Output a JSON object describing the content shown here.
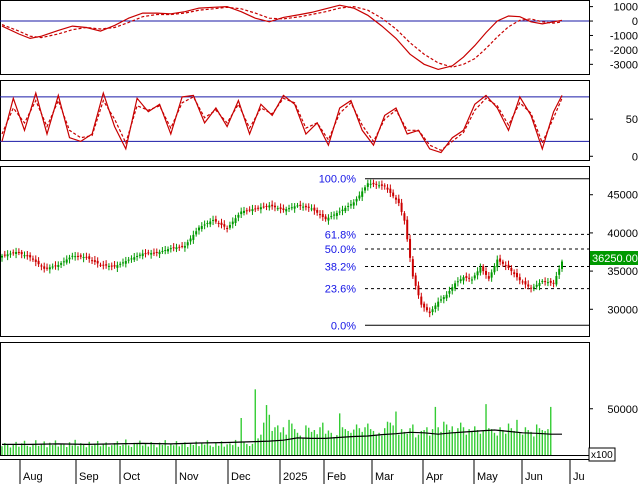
{
  "chart_data": [
    {
      "type": "line",
      "panel": "macd",
      "y_ticks": [
        "1000",
        "0",
        "-1000",
        "-2000",
        "-3000"
      ],
      "y_tick_values": [
        1000,
        0,
        -1000,
        -2000,
        -3000
      ],
      "ylim": [
        -3600,
        1250
      ],
      "reference_lines": [
        0
      ],
      "series": [
        {
          "color": "#c80000",
          "style": "solid",
          "x": [
            0,
            6,
            10,
            14,
            20,
            25,
            30,
            35,
            40,
            45,
            50,
            55,
            60,
            65,
            70,
            75,
            80,
            85,
            90,
            95,
            100,
            106,
            110,
            115,
            120,
            125,
            130,
            135,
            140,
            145,
            150,
            155,
            160,
            164,
            168,
            172,
            176,
            180,
            184,
            188,
            192,
            196,
            199
          ],
          "values": [
            -350,
            -900,
            -1200,
            -1050,
            -650,
            -350,
            -450,
            -700,
            -300,
            200,
            550,
            550,
            500,
            650,
            900,
            950,
            1000,
            650,
            200,
            -50,
            250,
            450,
            600,
            850,
            1100,
            900,
            400,
            -350,
            -1200,
            -2300,
            -3000,
            -3350,
            -3100,
            -2500,
            -1700,
            -800,
            0,
            350,
            300,
            -50,
            -200,
            -50,
            50
          ]
        },
        {
          "color": "#c80000",
          "style": "dashed",
          "x": [
            0,
            6,
            10,
            14,
            20,
            25,
            30,
            35,
            40,
            45,
            50,
            55,
            60,
            65,
            70,
            75,
            80,
            85,
            90,
            95,
            100,
            106,
            110,
            115,
            120,
            125,
            130,
            135,
            140,
            145,
            150,
            155,
            160,
            164,
            168,
            172,
            176,
            180,
            184,
            188,
            192,
            196,
            199
          ],
          "values": [
            -250,
            -700,
            -1050,
            -1150,
            -900,
            -600,
            -450,
            -550,
            -450,
            -100,
            300,
            450,
            450,
            550,
            750,
            850,
            950,
            850,
            550,
            200,
            150,
            300,
            450,
            650,
            900,
            1000,
            750,
            200,
            -550,
            -1500,
            -2300,
            -2900,
            -3200,
            -3000,
            -2600,
            -1900,
            -1100,
            -400,
            50,
            150,
            -50,
            -150,
            -50
          ]
        }
      ]
    },
    {
      "type": "line",
      "panel": "stochastic",
      "y_ticks": [
        "50",
        "0"
      ],
      "y_tick_values": [
        50,
        0
      ],
      "ylim": [
        -5,
        100
      ],
      "reference_lines": [
        80,
        20
      ],
      "series": [
        {
          "color": "#c80000",
          "style": "solid",
          "x": [
            0,
            4,
            8,
            12,
            16,
            20,
            24,
            28,
            32,
            36,
            40,
            44,
            48,
            52,
            56,
            60,
            64,
            68,
            72,
            76,
            80,
            84,
            88,
            92,
            96,
            100,
            104,
            108,
            112,
            116,
            120,
            124,
            128,
            132,
            136,
            140,
            144,
            148,
            152,
            156,
            160,
            164,
            168,
            172,
            176,
            180,
            184,
            188,
            192,
            196,
            199
          ],
          "values": [
            20,
            78,
            35,
            85,
            30,
            82,
            25,
            20,
            30,
            85,
            40,
            10,
            78,
            60,
            70,
            30,
            80,
            82,
            45,
            65,
            40,
            75,
            30,
            70,
            55,
            82,
            70,
            30,
            45,
            15,
            65,
            75,
            35,
            15,
            55,
            65,
            30,
            35,
            10,
            5,
            25,
            35,
            70,
            82,
            65,
            35,
            80,
            55,
            10,
            60,
            82
          ]
        },
        {
          "color": "#c80000",
          "style": "dashed",
          "x": [
            0,
            4,
            8,
            12,
            16,
            20,
            24,
            28,
            32,
            36,
            40,
            44,
            48,
            52,
            56,
            60,
            64,
            68,
            72,
            76,
            80,
            84,
            88,
            92,
            96,
            100,
            104,
            108,
            112,
            116,
            120,
            124,
            128,
            132,
            136,
            140,
            144,
            148,
            152,
            156,
            160,
            164,
            168,
            172,
            176,
            180,
            184,
            188,
            192,
            196,
            199
          ],
          "values": [
            30,
            65,
            45,
            75,
            40,
            75,
            35,
            25,
            28,
            75,
            50,
            18,
            68,
            62,
            68,
            38,
            72,
            80,
            52,
            62,
            45,
            70,
            38,
            65,
            57,
            78,
            72,
            38,
            45,
            22,
            58,
            72,
            42,
            20,
            50,
            62,
            35,
            35,
            15,
            8,
            20,
            32,
            62,
            78,
            68,
            42,
            72,
            58,
            18,
            52,
            78
          ]
        }
      ]
    },
    {
      "type": "candlestick",
      "panel": "price",
      "y_ticks": [
        "45000",
        "40000",
        "35000",
        "30000"
      ],
      "y_tick_values": [
        45000,
        40000,
        35000,
        30000
      ],
      "ylim": [
        26500,
        48500
      ],
      "last_price_label": "36250.00",
      "last_price": 36250,
      "close_x": [
        0,
        5,
        10,
        15,
        20,
        25,
        30,
        35,
        40,
        45,
        50,
        55,
        60,
        65,
        70,
        75,
        80,
        85,
        90,
        95,
        100,
        105,
        110,
        115,
        120,
        125,
        127,
        130,
        133,
        136,
        139,
        141,
        143,
        146,
        149,
        152,
        155,
        158,
        161,
        164,
        167,
        170,
        173,
        176,
        180,
        184,
        188,
        192,
        196,
        199
      ],
      "close": [
        37000,
        37500,
        36800,
        35300,
        35800,
        37000,
        36800,
        35800,
        35600,
        36500,
        37300,
        37400,
        38000,
        38300,
        40700,
        41700,
        40600,
        42800,
        43200,
        43600,
        43000,
        43600,
        43200,
        41800,
        42800,
        44000,
        44900,
        46500,
        46300,
        46100,
        44800,
        43900,
        41600,
        34300,
        30600,
        29500,
        31000,
        31900,
        33400,
        34200,
        33900,
        35500,
        34000,
        36500,
        35400,
        33800,
        32700,
        33700,
        33400,
        36250
      ],
      "fibonacci": {
        "levels": [
          {
            "label": "100.0%",
            "price": 47100
          },
          {
            "label": "61.8%",
            "price": 39800
          },
          {
            "label": "50.0%",
            "price": 37900
          },
          {
            "label": "38.2%",
            "price": 35600
          },
          {
            "label": "23.6%",
            "price": 32700
          },
          {
            "label": "0.0%",
            "price": 27900
          }
        ]
      }
    },
    {
      "type": "bar",
      "panel": "volume",
      "y_ticks": [
        "50000"
      ],
      "y_tick_values": [
        50000
      ],
      "ylim": [
        0,
        120000
      ],
      "unit_label": "x100",
      "values": [
        9500,
        13000,
        10800,
        8200,
        11800,
        14200,
        9000,
        12600,
        15400,
        10000,
        8800,
        12000,
        16000,
        9900,
        11400,
        14700,
        8400,
        13300,
        10700,
        15800,
        9200,
        12200,
        11300,
        8600,
        13800,
        10300,
        16400,
        9600,
        12800,
        11000,
        8400,
        14300,
        10100,
        12400,
        15200,
        9400,
        11700,
        13600,
        8900,
        10600,
        12900,
        14900,
        9700,
        11100,
        16800,
        10400,
        8700,
        13100,
        11900,
        15600,
        10200,
        12500,
        9100,
        14000,
        11300,
        8300,
        13400,
        10900,
        16100,
        9800,
        12100,
        10500,
        15000,
        9300,
        11600,
        13700,
        8600,
        12300,
        10800,
        14500,
        9600,
        12700,
        11200,
        15900,
        10300,
        8800,
        13200,
        10000,
        14800,
        9000,
        11500,
        12600,
        10700,
        16300,
        8900,
        40000,
        13900,
        11800,
        9700,
        12000,
        71000,
        18000,
        22000,
        35000,
        54000,
        43500,
        26000,
        30000,
        32000,
        24500,
        30000,
        22000,
        38000,
        34000,
        28000,
        24000,
        21000,
        18500,
        32000,
        29500,
        25000,
        27000,
        22500,
        30000,
        35000,
        23000,
        26500,
        24000,
        19500,
        21500,
        45000,
        30000,
        28000,
        26000,
        24000,
        27500,
        33000,
        29000,
        25000,
        30000,
        34000,
        28000,
        26000,
        22000,
        24000,
        21000,
        29000,
        36000,
        35000,
        32000,
        47000,
        22000,
        28000,
        25000,
        23000,
        29000,
        33000,
        19000,
        22000,
        26000,
        27000,
        30000,
        21000,
        28000,
        52000,
        30000,
        25000,
        36000,
        33000,
        27000,
        31000,
        24000,
        29000,
        35000,
        30000,
        22000,
        28000,
        25000,
        31000,
        27000,
        23000,
        26000,
        55000,
        29000,
        28000,
        24000,
        21000,
        30000,
        27000,
        23000,
        34000,
        29000,
        26000,
        38000,
        24000,
        22000,
        30000,
        27000,
        25000,
        20000,
        33000,
        29000,
        27000,
        26000,
        28000,
        52000
      ],
      "moving_average": {
        "x": [
          0,
          10,
          20,
          30,
          40,
          50,
          60,
          70,
          80,
          90,
          95,
          100,
          105,
          110,
          115,
          120,
          125,
          130,
          135,
          140,
          145,
          150,
          155,
          160,
          165,
          170,
          175,
          180,
          185,
          190,
          195,
          199
        ],
        "values": [
          11500,
          11500,
          12000,
          11500,
          12000,
          12500,
          12000,
          13000,
          13500,
          14500,
          15000,
          16000,
          18500,
          18000,
          18000,
          19000,
          20000,
          20500,
          22000,
          23000,
          24500,
          24000,
          22500,
          24000,
          25000,
          26000,
          27000,
          25500,
          24000,
          23500,
          22500,
          22500
        ]
      },
      "months": [
        "Aug",
        "Sep",
        "Oct",
        "Nov",
        "Dec",
        "2025",
        "Feb",
        "Mar",
        "Apr",
        "May",
        "Jun",
        "Ju"
      ]
    }
  ]
}
